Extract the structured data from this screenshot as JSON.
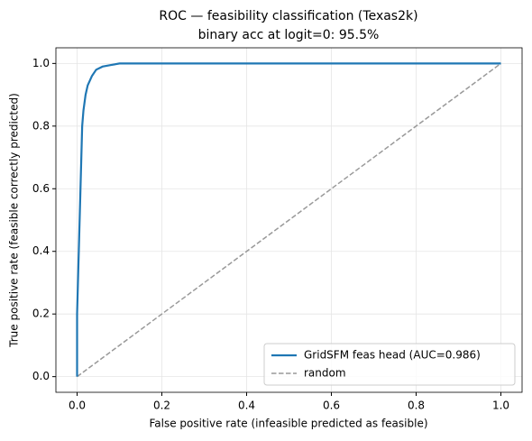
{
  "chart_data": {
    "type": "line",
    "title": "ROC — feasibility classification (Texas2k)",
    "subtitle": "binary acc at logit=0: 95.5%",
    "x_label": "False positive rate (infeasible predicted as feasible)",
    "y_label": "True positive rate (feasible correctly predicted)",
    "xlim": [
      -0.05,
      1.05
    ],
    "ylim": [
      -0.05,
      1.05
    ],
    "xticks": [
      {
        "value": 0,
        "label": "0.0"
      },
      0.2,
      0.4,
      0.6,
      0.8,
      {
        "value": 1,
        "label": "1.0"
      }
    ],
    "yticks": [
      {
        "value": 0,
        "label": "0.0"
      },
      0.2,
      0.4,
      0.6,
      0.8,
      {
        "value": 1,
        "label": "1.0"
      }
    ],
    "grid": true,
    "legend": "lower right",
    "series": [
      {
        "name": "GridSFM feas head (AUC=0.986)",
        "color": "#1f77b4",
        "style": "solid",
        "x": [
          0,
          0,
          0.003,
          0.005,
          0.008,
          0.01,
          0.012,
          0.015,
          0.02,
          0.025,
          0.035,
          0.045,
          0.06,
          0.08,
          0.1,
          1
        ],
        "values": [
          0,
          0.2,
          0.35,
          0.45,
          0.6,
          0.7,
          0.8,
          0.85,
          0.9,
          0.93,
          0.96,
          0.98,
          0.99,
          0.995,
          1,
          1
        ]
      },
      {
        "name": "random",
        "color": "#999999",
        "style": "dashed",
        "x": [
          0,
          1
        ],
        "values": [
          0,
          1
        ]
      }
    ]
  }
}
